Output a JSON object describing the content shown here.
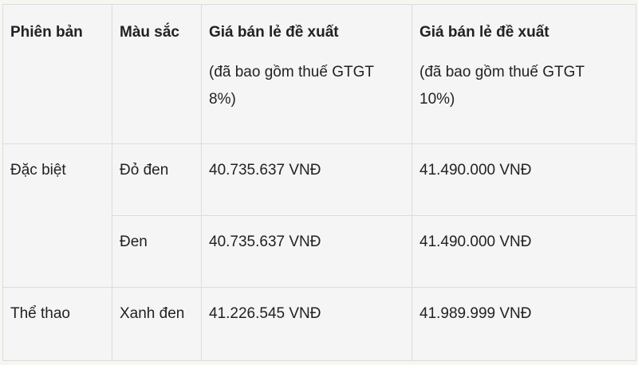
{
  "headers": {
    "edition": "Phiên bản",
    "color": "Màu sắc",
    "price8_title": "Giá bán lẻ đề xuất",
    "price8_note": "(đã bao gồm thuế GTGT 8%)",
    "price10_title": "Giá bán lẻ đề xuất",
    "price10_note": "(đã bao gồm thuế GTGT 10%)"
  },
  "rows": [
    {
      "edition": "Đặc biệt",
      "color": "Đỏ đen",
      "price8": "40.735.637 VNĐ",
      "price10": "41.490.000 VNĐ"
    },
    {
      "edition": "",
      "color": "Đen",
      "price8": "40.735.637 VNĐ",
      "price10": "41.490.000 VNĐ"
    },
    {
      "edition": "Thể thao",
      "color": "Xanh đen",
      "price8": "41.226.545 VNĐ",
      "price10": "41.989.999 VNĐ"
    }
  ]
}
